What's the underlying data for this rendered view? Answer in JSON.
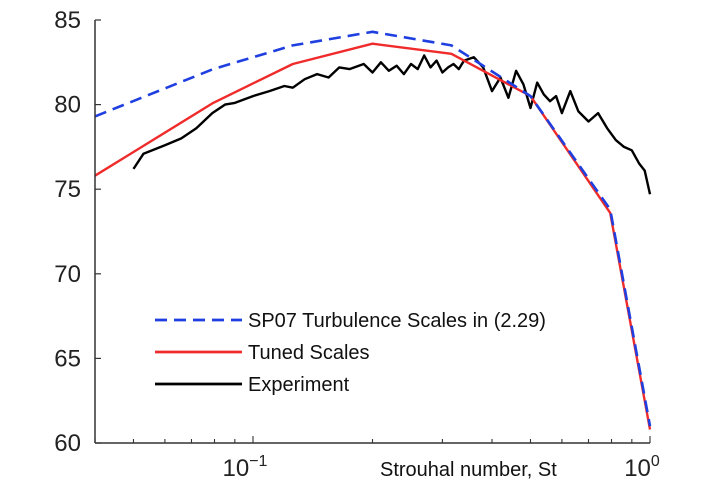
{
  "chart_data": {
    "type": "line",
    "title": "",
    "xlabel": "Strouhal number,  St",
    "ylabel": "",
    "xscale": "log",
    "xlim": [
      0.04,
      1.0
    ],
    "ylim": [
      60,
      85
    ],
    "yticks": [
      60,
      65,
      70,
      75,
      80,
      85
    ],
    "xticks": [
      {
        "value": 0.1,
        "base": "10",
        "exp": "−1"
      },
      {
        "value": 1.0,
        "base": "10",
        "exp": "0"
      }
    ],
    "legend_position": "lower-left",
    "series": [
      {
        "name": "SP07 Turbulence Scales in (2.29)",
        "color": "#1f3fe0",
        "style": "dashed",
        "x": [
          0.04,
          0.0794,
          0.126,
          0.2,
          0.316,
          0.5,
          0.794,
          1.0
        ],
        "y": [
          79.3,
          82.1,
          83.5,
          84.3,
          83.5,
          80.5,
          73.8,
          61.0
        ]
      },
      {
        "name": "Tuned Scales",
        "color": "#ef2b2b",
        "style": "solid",
        "x": [
          0.04,
          0.0794,
          0.126,
          0.2,
          0.316,
          0.5,
          0.794,
          1.0
        ],
        "y": [
          75.8,
          80.1,
          82.4,
          83.6,
          83.0,
          80.5,
          73.6,
          60.8
        ]
      },
      {
        "name": "Experiment",
        "color": "#000000",
        "style": "solid",
        "x": [
          0.05,
          0.053,
          0.06,
          0.066,
          0.072,
          0.079,
          0.085,
          0.09,
          0.1,
          0.11,
          0.12,
          0.126,
          0.135,
          0.145,
          0.155,
          0.165,
          0.175,
          0.19,
          0.2,
          0.21,
          0.22,
          0.23,
          0.24,
          0.25,
          0.26,
          0.27,
          0.28,
          0.29,
          0.3,
          0.31,
          0.32,
          0.33,
          0.34,
          0.36,
          0.38,
          0.4,
          0.42,
          0.44,
          0.46,
          0.48,
          0.5,
          0.52,
          0.54,
          0.56,
          0.58,
          0.6,
          0.63,
          0.66,
          0.7,
          0.74,
          0.78,
          0.82,
          0.86,
          0.9,
          0.94,
          0.97,
          1.0
        ],
        "y": [
          76.2,
          77.1,
          77.6,
          78.0,
          78.6,
          79.5,
          80.0,
          80.1,
          80.5,
          80.8,
          81.1,
          81.0,
          81.5,
          81.8,
          81.6,
          82.2,
          82.1,
          82.4,
          81.9,
          82.5,
          82.0,
          82.3,
          81.8,
          82.4,
          82.1,
          82.9,
          82.2,
          82.6,
          81.9,
          82.2,
          82.4,
          82.1,
          82.6,
          82.8,
          82.2,
          80.8,
          81.6,
          80.4,
          82.0,
          81.2,
          79.8,
          81.3,
          80.6,
          80.2,
          80.5,
          79.5,
          80.8,
          79.6,
          79.0,
          79.5,
          78.6,
          77.9,
          77.5,
          77.3,
          76.5,
          76.1,
          74.7
        ]
      }
    ]
  }
}
